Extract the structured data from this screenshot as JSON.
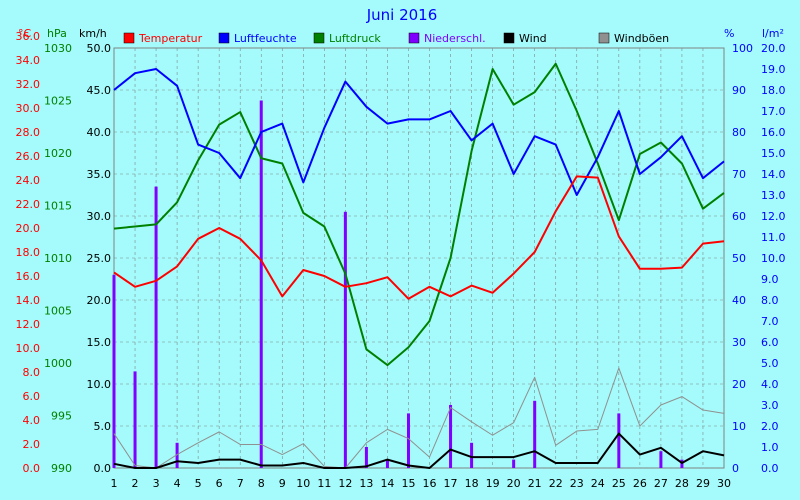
{
  "chart_data": {
    "type": "line",
    "title": "Juni 2016",
    "x": [
      1,
      2,
      3,
      4,
      5,
      6,
      7,
      8,
      9,
      10,
      11,
      12,
      13,
      14,
      15,
      16,
      17,
      18,
      19,
      20,
      21,
      22,
      23,
      24,
      25,
      26,
      27,
      28,
      29,
      30
    ],
    "units": {
      "temp": "°C",
      "pressure": "hPa",
      "wind": "km/h",
      "humidity": "%",
      "precip": "l/m²"
    },
    "axes": {
      "temp": {
        "min": 0,
        "max": 35,
        "step": 2,
        "decimals": 1,
        "color": "#ff0000"
      },
      "pressure": {
        "min": 990,
        "max": 1030,
        "step": 5,
        "decimals": 0,
        "color": "#008000"
      },
      "wind": {
        "min": 0,
        "max": 50,
        "step": 5,
        "decimals": 1,
        "color": "#000000"
      },
      "humidity": {
        "min": 0,
        "max": 100,
        "step": 10,
        "decimals": 0,
        "color": "#0000ff"
      },
      "precip": {
        "min": 0,
        "max": 20,
        "step": 1,
        "decimals": 1,
        "color": "#0000ff"
      }
    },
    "grid": true,
    "legend_position": "top",
    "series": [
      {
        "name": "Temperatur",
        "axis": "temp",
        "type": "line",
        "color": "#ff0000",
        "width": 2,
        "values": [
          16.3,
          15.1,
          15.6,
          16.8,
          19.1,
          20.0,
          19.1,
          17.3,
          14.3,
          16.5,
          16.0,
          15.1,
          15.4,
          15.9,
          14.1,
          15.1,
          14.3,
          15.2,
          14.6,
          16.2,
          18.0,
          21.4,
          24.3,
          24.2,
          19.3,
          16.6,
          16.6,
          16.7,
          18.7,
          18.9
        ]
      },
      {
        "name": "Luftfeuchte",
        "axis": "humidity",
        "type": "line",
        "color": "#0000ff",
        "width": 2,
        "values": [
          90,
          94,
          95,
          91,
          77,
          75,
          69,
          80,
          82,
          68,
          81,
          92,
          86,
          82,
          83,
          83,
          85,
          78,
          82,
          70,
          79,
          77,
          65,
          74,
          85,
          70,
          74,
          79,
          69,
          73
        ]
      },
      {
        "name": "Luftdruck",
        "axis": "pressure",
        "type": "line",
        "color": "#008000",
        "width": 2,
        "values": [
          1012.8,
          1013.0,
          1013.2,
          1015.3,
          1019.3,
          1022.7,
          1023.9,
          1019.5,
          1019.0,
          1014.3,
          1013.0,
          1008.5,
          1001.3,
          999.8,
          1001.5,
          1004.0,
          1010.0,
          1020.2,
          1028.0,
          1024.6,
          1025.8,
          1028.5,
          1024.0,
          1019.0,
          1013.6,
          1019.9,
          1021.0,
          1019.0,
          1014.7,
          1016.2
        ]
      },
      {
        "name": "Niederschl.",
        "axis": "precip",
        "type": "bar",
        "color": "#8000ff",
        "width": 3,
        "values": [
          9.2,
          4.6,
          13.4,
          1.2,
          0,
          0,
          0,
          17.5,
          0,
          0,
          0,
          12.2,
          1.0,
          0.4,
          2.6,
          0,
          3.0,
          1.2,
          0,
          0.4,
          3.2,
          0,
          0,
          0,
          2.6,
          0,
          0.8,
          0.4,
          0,
          0
        ]
      },
      {
        "name": "Wind",
        "axis": "wind",
        "type": "line",
        "color": "#000000",
        "width": 2,
        "values": [
          0.5,
          0.0,
          0.0,
          0.8,
          0.6,
          1.0,
          1.0,
          0.3,
          0.3,
          0.6,
          0.0,
          0.0,
          0.2,
          1.0,
          0.3,
          0.0,
          2.2,
          1.3,
          1.3,
          1.3,
          2.0,
          0.6,
          0.6,
          0.6,
          4.1,
          1.6,
          2.4,
          0.6,
          2.0,
          1.5
        ]
      },
      {
        "name": "Windböen",
        "axis": "wind",
        "type": "line",
        "color": "#909090",
        "width": 1,
        "values": [
          4.1,
          0.3,
          0.0,
          1.6,
          3.0,
          4.3,
          2.8,
          2.8,
          1.6,
          2.9,
          0.2,
          0.0,
          3.0,
          4.6,
          3.5,
          1.3,
          7.2,
          5.5,
          3.9,
          5.4,
          10.8,
          2.7,
          4.4,
          4.6,
          11.9,
          5.0,
          7.5,
          8.5,
          6.9,
          6.5
        ]
      }
    ]
  }
}
